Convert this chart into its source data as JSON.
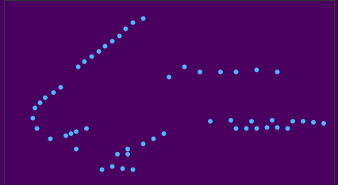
{
  "background_color": "#4a0060",
  "land_color": "#ffd700",
  "ocean_color": "#4a0060",
  "border_color": "#000000",
  "station_color": "#4db8ff",
  "station_size": 18,
  "extent_lon": [
    3.0,
    35.0
  ],
  "extent_lat": [
    54.0,
    72.0
  ],
  "station_lons": [
    16.5,
    15.5,
    14.8,
    14.2,
    13.5,
    12.8,
    12.2,
    11.5,
    10.8,
    10.2,
    8.5,
    7.8,
    7.0,
    6.5,
    6.0,
    5.8,
    6.2,
    7.5,
    9.0,
    9.5,
    10.0,
    11.0,
    14.0,
    15.0,
    16.5,
    17.5,
    18.5,
    20.5,
    22.0,
    24.0,
    25.5,
    27.5,
    29.5,
    23.0,
    25.0,
    27.0,
    29.0,
    31.0,
    32.0,
    33.0,
    34.0,
    25.5,
    26.5,
    27.5,
    28.5,
    29.5,
    30.5,
    12.5,
    13.5,
    14.5,
    15.5,
    10.0,
    15.0,
    19.0
  ],
  "station_lats": [
    70.2,
    69.8,
    69.2,
    68.5,
    68.0,
    67.5,
    67.0,
    66.5,
    66.0,
    65.5,
    63.5,
    63.0,
    62.5,
    62.0,
    61.5,
    60.5,
    59.5,
    58.5,
    58.8,
    59.0,
    59.2,
    59.5,
    57.0,
    57.5,
    58.0,
    58.5,
    59.0,
    65.5,
    65.0,
    65.0,
    65.0,
    65.2,
    65.0,
    60.2,
    60.3,
    60.2,
    60.3,
    60.2,
    60.2,
    60.1,
    60.0,
    59.5,
    59.5,
    59.5,
    59.6,
    59.6,
    59.5,
    55.5,
    55.8,
    55.6,
    55.5,
    57.5,
    57.0,
    64.5
  ]
}
